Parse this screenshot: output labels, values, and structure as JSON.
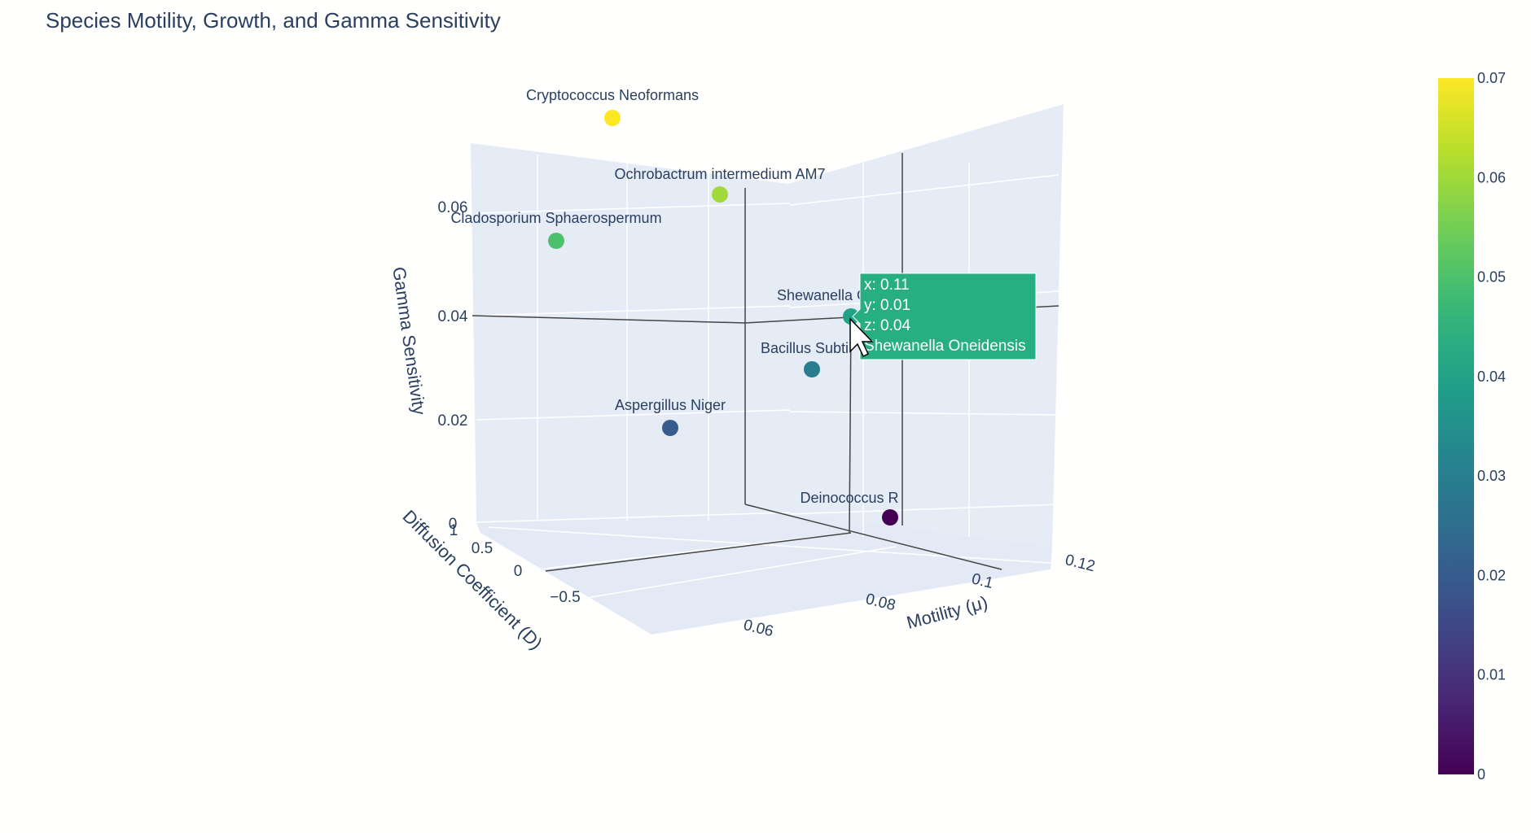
{
  "title": "Species Motility, Growth, and Gamma Sensitivity",
  "modebar": [
    "camera-icon",
    "zoom-icon",
    "pan-icon",
    "orbit-rotation-icon",
    "turntable-rotation-icon",
    "reset-camera-default-icon",
    "reset-camera-last-save-icon",
    "plotly-logo-icon"
  ],
  "chart_data": {
    "type": "scatter3d",
    "title": "Species Motility, Growth, and Gamma Sensitivity",
    "xlabel": "Motility (μ)",
    "ylabel": "Diffusion Coefficient (D)",
    "zlabel": "Gamma Sensitivity",
    "x_ticks": [
      "0.06",
      "0.08",
      "0.1",
      "0.12"
    ],
    "y_ticks": [
      "−0.5",
      "0",
      "0.5",
      "1"
    ],
    "z_ticks": [
      "0",
      "0.02",
      "0.04",
      "0.06"
    ],
    "colorscale": "Viridis",
    "colorbar_ticks": [
      "0",
      "0.01",
      "0.02",
      "0.03",
      "0.04",
      "0.05",
      "0.06",
      "0.07"
    ],
    "colorbar_range": [
      0,
      0.07
    ],
    "points": [
      {
        "label": "Cryptococcus Neoformans",
        "z": 0.07
      },
      {
        "label": "Ochrobactrum intermedium AM7",
        "z": 0.06
      },
      {
        "label": "Cladosporium Sphaerospermum",
        "z": 0.05
      },
      {
        "label": "Shewanella Oneidensis",
        "x": 0.11,
        "y": 0.01,
        "z": 0.04
      },
      {
        "label": "Bacillus Subtilis",
        "z": 0.03
      },
      {
        "label": "Aspergillus Niger",
        "z": 0.02
      },
      {
        "label": "Deinococcus R",
        "z": 0.0
      }
    ],
    "hover": {
      "lines": [
        "x: 0.11",
        "y: 0.01",
        "z: 0.04",
        "Shewanella Oneidensis"
      ],
      "color": "#27ae81"
    }
  }
}
